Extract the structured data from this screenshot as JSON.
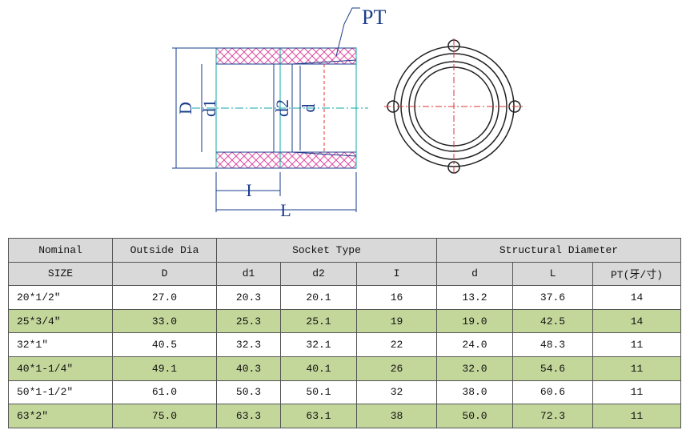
{
  "diagram": {
    "labels": {
      "pt": "PT",
      "D": "D",
      "d1": "d1",
      "d2": "d2",
      "d": "d",
      "I": "I",
      "L": "L"
    }
  },
  "table": {
    "group_header": [
      "Nominal",
      "Outside Dia",
      "Socket    Type",
      "Structural Diameter"
    ],
    "header": [
      "SIZE",
      "D",
      "d1",
      "d2",
      "I",
      "d",
      "L",
      "PT(牙/寸)"
    ],
    "rows": [
      [
        "20*1/2″",
        "27.0",
        "20.3",
        "20.1",
        "16",
        "13.2",
        "37.6",
        "14"
      ],
      [
        "25*3/4″",
        "33.0",
        "25.3",
        "25.1",
        "19",
        "19.0",
        "42.5",
        "14"
      ],
      [
        "32*1″",
        "40.5",
        "32.3",
        "32.1",
        "22",
        "24.0",
        "48.3",
        "11"
      ],
      [
        "40*1-1/4″",
        "49.1",
        "40.3",
        "40.1",
        "26",
        "32.0",
        "54.6",
        "11"
      ],
      [
        "50*1-1/2″",
        "61.0",
        "50.3",
        "50.1",
        "32",
        "38.0",
        "60.6",
        "11"
      ],
      [
        "63*2″",
        "75.0",
        "63.3",
        "63.1",
        "38",
        "50.0",
        "72.3",
        "11"
      ]
    ]
  }
}
